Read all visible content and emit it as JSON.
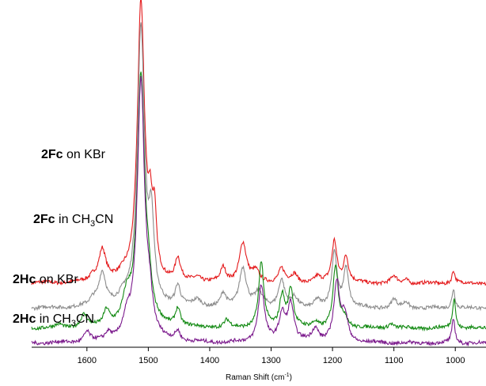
{
  "chart_data": {
    "type": "line",
    "title": "",
    "xlabel": "Raman Shift (cm",
    "xlabel_sup": "-1",
    "xlabel_close": ")",
    "xlim": [
      1690,
      950
    ],
    "x_reversed": true,
    "ticks": [
      1600,
      1500,
      1400,
      1300,
      1200,
      1100,
      1000
    ],
    "grid": false,
    "series": [
      {
        "label_bold": "2Fc",
        "label_text": " on KBr",
        "label_sub": "",
        "label_after": "",
        "color": "#e41a1c",
        "baseline": 0.64,
        "peaks": [
          [
            1590,
            0.05,
            6
          ],
          [
            1575,
            0.32,
            7
          ],
          [
            1540,
            0.05,
            8
          ],
          [
            1512,
            2.8,
            7
          ],
          [
            1497,
            0.48,
            4
          ],
          [
            1490,
            0.55,
            4
          ],
          [
            1452,
            0.22,
            5
          ],
          [
            1420,
            0.05,
            8
          ],
          [
            1378,
            0.14,
            5
          ],
          [
            1346,
            0.4,
            7
          ],
          [
            1325,
            0.1,
            7
          ],
          [
            1283,
            0.14,
            6
          ],
          [
            1262,
            0.08,
            6
          ],
          [
            1225,
            0.06,
            6
          ],
          [
            1197,
            0.42,
            5
          ],
          [
            1178,
            0.26,
            5
          ],
          [
            1100,
            0.07,
            5
          ],
          [
            1080,
            0.04,
            5
          ],
          [
            1003,
            0.13,
            3
          ]
        ]
      },
      {
        "label_bold": "2Fc",
        "label_text": " in CH",
        "label_sub": "3",
        "label_after": "CN",
        "color": "#8c8c8c",
        "baseline": 0.39,
        "peaks": [
          [
            1590,
            0.06,
            6
          ],
          [
            1575,
            0.34,
            7
          ],
          [
            1540,
            0.07,
            8
          ],
          [
            1512,
            2.8,
            7
          ],
          [
            1495,
            0.75,
            5
          ],
          [
            1452,
            0.2,
            5
          ],
          [
            1420,
            0.07,
            8
          ],
          [
            1378,
            0.13,
            5
          ],
          [
            1346,
            0.4,
            7
          ],
          [
            1320,
            0.14,
            8
          ],
          [
            1283,
            0.28,
            6
          ],
          [
            1262,
            0.09,
            6
          ],
          [
            1225,
            0.08,
            6
          ],
          [
            1197,
            0.55,
            5
          ],
          [
            1178,
            0.4,
            5
          ],
          [
            1100,
            0.09,
            5
          ],
          [
            1080,
            0.06,
            5
          ],
          [
            1003,
            0.2,
            3
          ]
        ]
      },
      {
        "label_bold": "2Hc",
        "label_text": " on KBr",
        "label_sub": "",
        "label_after": "",
        "color": "#138a13",
        "baseline": 0.19,
        "peaks": [
          [
            1645,
            0.03,
            6
          ],
          [
            1605,
            0.12,
            6
          ],
          [
            1568,
            0.16,
            6
          ],
          [
            1535,
            0.25,
            8
          ],
          [
            1512,
            2.5,
            7
          ],
          [
            1500,
            0.3,
            6
          ],
          [
            1452,
            0.18,
            5
          ],
          [
            1372,
            0.07,
            5
          ],
          [
            1316,
            0.65,
            5
          ],
          [
            1282,
            0.32,
            5
          ],
          [
            1268,
            0.38,
            5
          ],
          [
            1228,
            0.06,
            6
          ],
          [
            1195,
            0.62,
            5
          ],
          [
            1180,
            0.1,
            6
          ],
          [
            1105,
            0.05,
            5
          ],
          [
            1002,
            0.31,
            3
          ]
        ]
      },
      {
        "label_bold": "2Hc",
        "label_text": " in CH",
        "label_sub": "3",
        "label_after": "CN",
        "color": "#7b1a8c",
        "baseline": 0.04,
        "peaks": [
          [
            1600,
            0.1,
            6
          ],
          [
            1565,
            0.08,
            6
          ],
          [
            1535,
            0.18,
            8
          ],
          [
            1512,
            2.6,
            7
          ],
          [
            1498,
            0.3,
            6
          ],
          [
            1452,
            0.1,
            5
          ],
          [
            1316,
            0.57,
            6
          ],
          [
            1282,
            0.27,
            6
          ],
          [
            1268,
            0.38,
            6
          ],
          [
            1228,
            0.13,
            7
          ],
          [
            1193,
            0.58,
            6
          ],
          [
            1180,
            0.25,
            6
          ],
          [
            1003,
            0.24,
            3
          ]
        ]
      }
    ]
  }
}
